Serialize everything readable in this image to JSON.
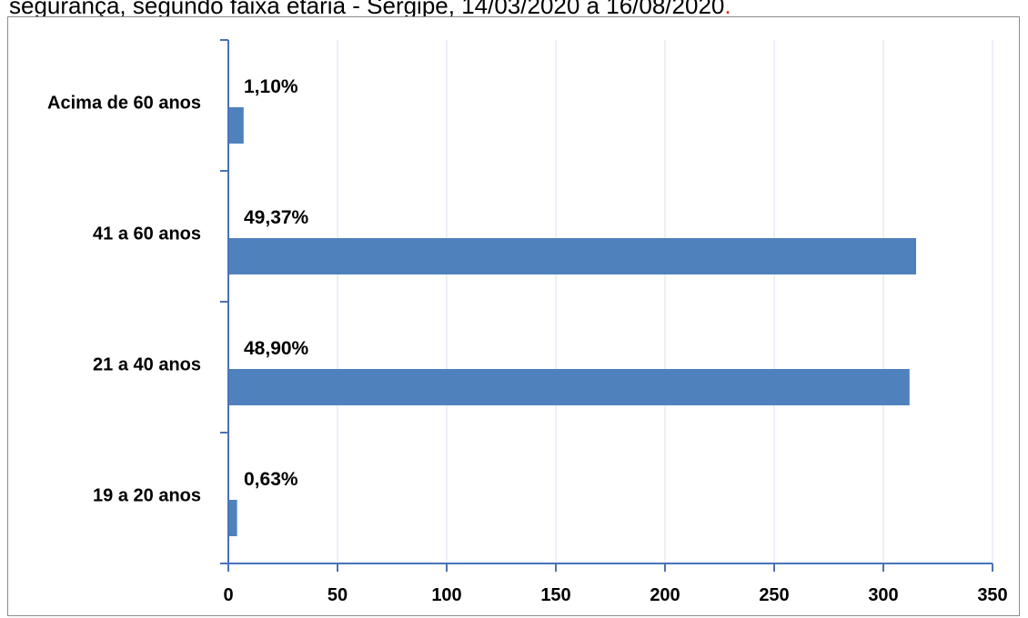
{
  "caption": {
    "text": "segurança, segundo faixa etária - Sergipe, 14/03/2020 a 16/08/2020",
    "mark": "."
  },
  "colors": {
    "bar": "#4f81bd",
    "axis": "#4a72b8",
    "grid": "#d9e1ef",
    "caption_mark": "#e8281e"
  },
  "chart_data": {
    "type": "bar",
    "orientation": "horizontal",
    "categories": [
      "Acima de 60 anos",
      "41 a 60 anos",
      "21 a 40 anos",
      "19 a 20 anos"
    ],
    "values": [
      7,
      315,
      312,
      4
    ],
    "data_labels": [
      "1,10%",
      "49,37%",
      "48,90%",
      "0,63%"
    ],
    "xlim": [
      0,
      350
    ],
    "xticks": [
      0,
      50,
      100,
      150,
      200,
      250,
      300,
      350
    ],
    "grid": "vertical",
    "legend": "none"
  }
}
